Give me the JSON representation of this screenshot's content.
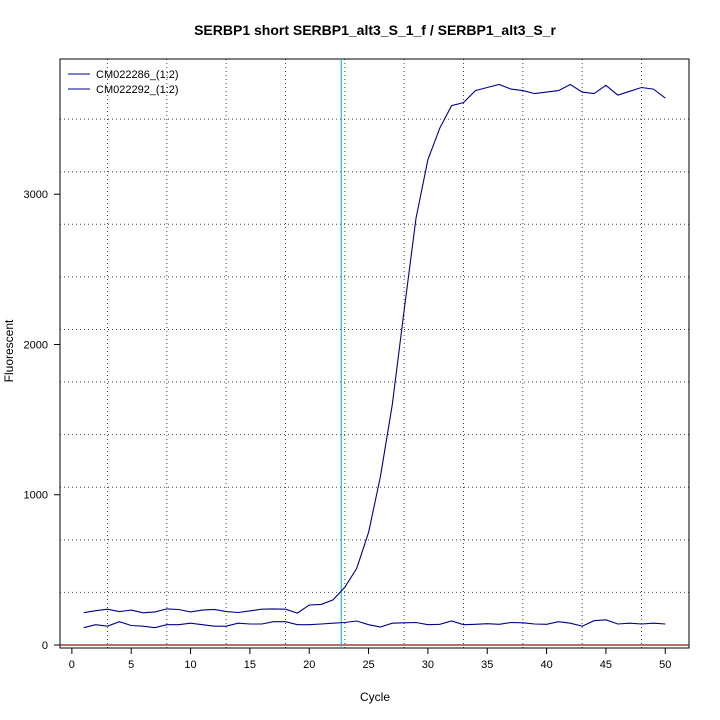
{
  "chart_data": {
    "type": "line",
    "title": "SERBP1 short SERBP1_alt3_S_1_f / SERBP1_alt3_S_r",
    "xlabel": "Cycle",
    "ylabel": "Fluorescent",
    "xlim": [
      -1,
      52
    ],
    "ylim": [
      -20,
      3900
    ],
    "x_ticks": [
      0,
      5,
      10,
      15,
      20,
      25,
      30,
      35,
      40,
      45,
      50
    ],
    "y_ticks": [
      0,
      1000,
      2000,
      3000
    ],
    "x_grid": [
      3,
      8,
      13,
      18,
      23,
      28,
      33,
      38,
      43,
      48
    ],
    "y_grid": [
      0,
      350,
      700,
      1050,
      1400,
      1750,
      2100,
      2450,
      2800,
      3150,
      3500
    ],
    "threshold_line": {
      "x": 22.7,
      "color": "#20c0d0"
    },
    "baseline": {
      "y": 0,
      "color": "#8b1a1a"
    },
    "legend_position": "top-left",
    "x": [
      1,
      2,
      3,
      4,
      5,
      6,
      7,
      8,
      9,
      10,
      11,
      12,
      13,
      14,
      15,
      16,
      17,
      18,
      19,
      20,
      21,
      22,
      23,
      24,
      25,
      26,
      27,
      28,
      29,
      30,
      31,
      32,
      33,
      34,
      35,
      36,
      37,
      38,
      39,
      40,
      41,
      42,
      43,
      44,
      45,
      46,
      47,
      48,
      49,
      50
    ],
    "series": [
      {
        "name": "CM022286_(1:2)",
        "color": "#00008b",
        "values": [
          215,
          228,
          238,
          222,
          232,
          214,
          220,
          240,
          236,
          220,
          232,
          237,
          222,
          216,
          227,
          238,
          240,
          238,
          212,
          266,
          270,
          300,
          384,
          510,
          750,
          1120,
          1600,
          2230,
          2840,
          3230,
          3440,
          3590,
          3610,
          3690,
          3710,
          3730,
          3700,
          3690,
          3670,
          3680,
          3690,
          3730,
          3680,
          3670,
          3725,
          3660,
          3685,
          3710,
          3700,
          3640
        ]
      },
      {
        "name": "CM022292_(1:2)",
        "color": "#00008b",
        "values": [
          115,
          135,
          125,
          155,
          130,
          125,
          115,
          135,
          135,
          145,
          135,
          125,
          125,
          145,
          140,
          140,
          155,
          155,
          135,
          135,
          140,
          145,
          150,
          160,
          135,
          120,
          145,
          148,
          150,
          135,
          138,
          160,
          135,
          138,
          142,
          138,
          150,
          148,
          140,
          138,
          155,
          145,
          125,
          162,
          168,
          140,
          145,
          140,
          145,
          140
        ]
      }
    ]
  }
}
